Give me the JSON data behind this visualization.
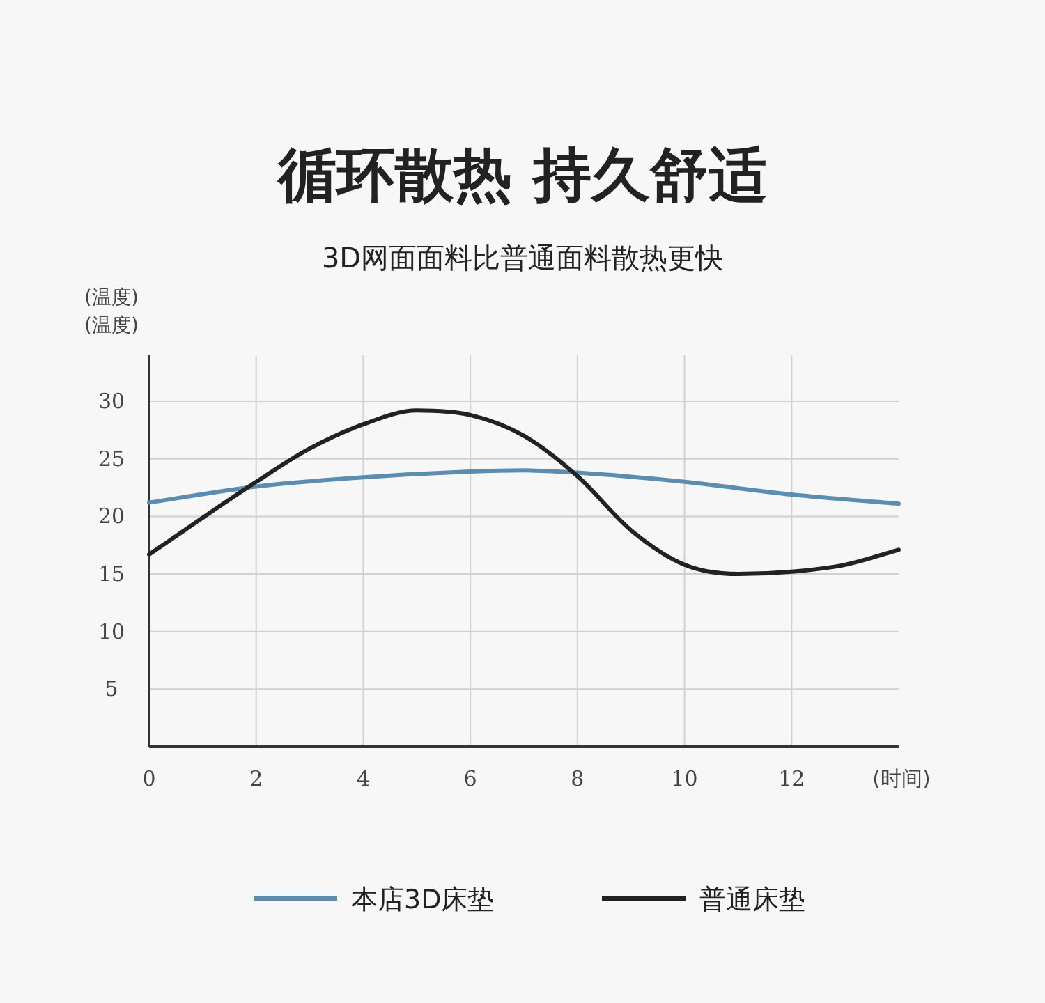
{
  "chart_data": {
    "type": "line",
    "title": "循环散热  持久舒适",
    "subtitle": "3D网面面料比普通面料散热更快",
    "ylabel": "(温度)\n(温度)",
    "xlabel": "(时间)",
    "xlim": [
      0,
      14
    ],
    "ylim": [
      0,
      34
    ],
    "xticks": [
      0,
      2,
      4,
      6,
      8,
      10,
      12
    ],
    "yticks": [
      5,
      10,
      15,
      20,
      25,
      30
    ],
    "grid": true,
    "legend": "bottom",
    "marker": "none",
    "line_style": "solid",
    "series": [
      {
        "name": "本店3D床垫",
        "color": "#5b8db0",
        "x": [
          0,
          2,
          4,
          6,
          7,
          8,
          10,
          12,
          14
        ],
        "values": [
          21.2,
          22.6,
          23.4,
          23.9,
          24,
          23.8,
          23,
          21.9,
          21.1
        ]
      },
      {
        "name": "普通床垫",
        "color": "#222222",
        "x": [
          0,
          2,
          3,
          4,
          5,
          6,
          7,
          8,
          9,
          10,
          11,
          12,
          13,
          14
        ],
        "values": [
          16.7,
          23,
          25.9,
          28,
          29.2,
          28.8,
          27,
          23.5,
          18.8,
          15.8,
          15,
          15.2,
          15.8,
          17.1
        ]
      }
    ]
  }
}
